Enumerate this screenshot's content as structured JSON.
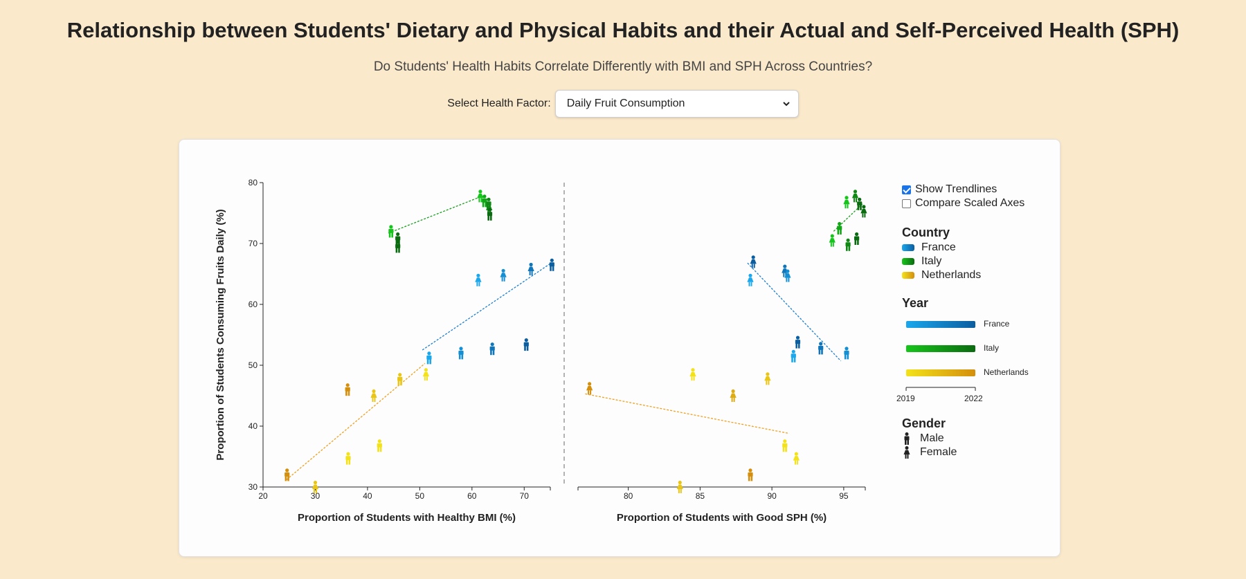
{
  "header": {
    "title": "Relationship between Students' Dietary and Physical Habits and their Actual and Self-Perceived Health (SPH)",
    "subtitle": "Do Students' Health Habits Correlate Differently with BMI and SPH Across Countries?"
  },
  "controls": {
    "select_label": "Select Health Factor:",
    "selected_value": "Daily Fruit Consumption"
  },
  "legend": {
    "show_trendlines": {
      "label": "Show Trendlines",
      "checked": true
    },
    "compare_scaled": {
      "label": "Compare Scaled Axes",
      "checked": false
    },
    "country_title": "Country",
    "countries": [
      {
        "name": "France",
        "color_light": "#1aa7ec",
        "color_dark": "#0b5ea0"
      },
      {
        "name": "Italy",
        "color_light": "#16c51b",
        "color_dark": "#0b6b10"
      },
      {
        "name": "Netherlands",
        "color_light": "#f3e21a",
        "color_dark": "#d48f0c"
      }
    ],
    "year_title": "Year",
    "year_start": "2019",
    "year_end": "2022",
    "gender_title": "Gender",
    "genders": [
      {
        "name": "Male",
        "icon": "male-figure-icon"
      },
      {
        "name": "Female",
        "icon": "female-figure-icon"
      }
    ]
  },
  "chart_data": {
    "type": "scatter",
    "ylabel": "Proportion of Students Consuming Fruits Daily (%)",
    "ylim": [
      30,
      80
    ],
    "yticks": [
      30,
      40,
      50,
      60,
      70,
      80
    ],
    "color_encoding": "country, shade by year (light = 2019, dark = 2022)",
    "panels": [
      {
        "xlabel": "Proportion of Students with Healthy BMI (%)",
        "xlim": [
          20,
          75
        ],
        "xticks": [
          20,
          30,
          40,
          50,
          60,
          70
        ],
        "trendlines": [
          {
            "country": "Italy",
            "x": [
              44,
              62
            ],
            "y": [
              71.7,
              77.8
            ]
          },
          {
            "country": "France",
            "x": [
              50.5,
              75
            ],
            "y": [
              52.5,
              66.7
            ]
          },
          {
            "country": "Netherlands",
            "x": [
              24.5,
              51
            ],
            "y": [
              31.2,
              50.3
            ]
          }
        ],
        "points": [
          {
            "country": "Italy",
            "year": 2019,
            "gender": "Male",
            "x": 44.5,
            "y": 72
          },
          {
            "country": "Italy",
            "year": 2022,
            "gender": "Male",
            "x": 45.8,
            "y": 70.8
          },
          {
            "country": "Italy",
            "year": 2022,
            "gender": "Male",
            "x": 45.8,
            "y": 69.5
          },
          {
            "country": "Italy",
            "year": 2019,
            "gender": "Female",
            "x": 61.6,
            "y": 77.8
          },
          {
            "country": "Italy",
            "year": 2020,
            "gender": "Male",
            "x": 62.4,
            "y": 77
          },
          {
            "country": "Italy",
            "year": 2021,
            "gender": "Male",
            "x": 63.2,
            "y": 76.5
          },
          {
            "country": "Italy",
            "year": 2021,
            "gender": "Female",
            "x": 63.3,
            "y": 75.8
          },
          {
            "country": "Italy",
            "year": 2022,
            "gender": "Male",
            "x": 63.4,
            "y": 74.8
          },
          {
            "country": "France",
            "year": 2019,
            "gender": "Female",
            "x": 61.2,
            "y": 64
          },
          {
            "country": "France",
            "year": 2020,
            "gender": "Female",
            "x": 66,
            "y": 64.8
          },
          {
            "country": "France",
            "year": 2021,
            "gender": "Female",
            "x": 71.3,
            "y": 65.8
          },
          {
            "country": "France",
            "year": 2022,
            "gender": "Male",
            "x": 75.3,
            "y": 66.5
          },
          {
            "country": "France",
            "year": 2019,
            "gender": "Male",
            "x": 51.8,
            "y": 51.2
          },
          {
            "country": "France",
            "year": 2020,
            "gender": "Male",
            "x": 57.9,
            "y": 52
          },
          {
            "country": "France",
            "year": 2021,
            "gender": "Male",
            "x": 63.9,
            "y": 52.7
          },
          {
            "country": "France",
            "year": 2022,
            "gender": "Male",
            "x": 70.4,
            "y": 53.4
          },
          {
            "country": "Netherlands",
            "year": 2022,
            "gender": "Male",
            "x": 24.6,
            "y": 32
          },
          {
            "country": "Netherlands",
            "year": 2020,
            "gender": "Female",
            "x": 30,
            "y": 30
          },
          {
            "country": "Netherlands",
            "year": 2019,
            "gender": "Male",
            "x": 36.3,
            "y": 34.7
          },
          {
            "country": "Netherlands",
            "year": 2019,
            "gender": "Male",
            "x": 42.3,
            "y": 36.8
          },
          {
            "country": "Netherlands",
            "year": 2022,
            "gender": "Male",
            "x": 36.2,
            "y": 46
          },
          {
            "country": "Netherlands",
            "year": 2020,
            "gender": "Female",
            "x": 41.2,
            "y": 45
          },
          {
            "country": "Netherlands",
            "year": 2020,
            "gender": "Male",
            "x": 46.2,
            "y": 47.7
          },
          {
            "country": "Netherlands",
            "year": 2019,
            "gender": "Female",
            "x": 51.2,
            "y": 48.5
          }
        ]
      },
      {
        "xlabel": "Proportion of Students with Good SPH (%)",
        "xlim": [
          76.5,
          96.5
        ],
        "xticks": [
          80,
          85,
          90,
          95
        ],
        "trendlines": [
          {
            "country": "Italy",
            "x": [
              94.3,
              96.3
            ],
            "y": [
              72,
              76.5
            ]
          },
          {
            "country": "France",
            "x": [
              88.3,
              94.8
            ],
            "y": [
              66.8,
              50.7
            ]
          },
          {
            "country": "Netherlands",
            "x": [
              77,
              91.2
            ],
            "y": [
              45.3,
              38.8
            ]
          }
        ],
        "points": [
          {
            "country": "Italy",
            "year": 2019,
            "gender": "Female",
            "x": 94.2,
            "y": 70.5
          },
          {
            "country": "Italy",
            "year": 2020,
            "gender": "Male",
            "x": 94.7,
            "y": 72.5
          },
          {
            "country": "Italy",
            "year": 2021,
            "gender": "Male",
            "x": 95.3,
            "y": 69.8
          },
          {
            "country": "Italy",
            "year": 2022,
            "gender": "Male",
            "x": 95.9,
            "y": 70.8
          },
          {
            "country": "Italy",
            "year": 2019,
            "gender": "Female",
            "x": 95.2,
            "y": 76.8
          },
          {
            "country": "Italy",
            "year": 2021,
            "gender": "Female",
            "x": 95.8,
            "y": 77.8
          },
          {
            "country": "Italy",
            "year": 2022,
            "gender": "Male",
            "x": 96.1,
            "y": 76.5
          },
          {
            "country": "Italy",
            "year": 2022,
            "gender": "Female",
            "x": 96.4,
            "y": 75.3
          },
          {
            "country": "France",
            "year": 2022,
            "gender": "Female",
            "x": 88.7,
            "y": 67
          },
          {
            "country": "France",
            "year": 2019,
            "gender": "Female",
            "x": 88.5,
            "y": 64
          },
          {
            "country": "France",
            "year": 2021,
            "gender": "Female",
            "x": 90.9,
            "y": 65.5
          },
          {
            "country": "France",
            "year": 2020,
            "gender": "Female",
            "x": 91.1,
            "y": 64.7
          },
          {
            "country": "France",
            "year": 2019,
            "gender": "Male",
            "x": 91.5,
            "y": 51.5
          },
          {
            "country": "France",
            "year": 2022,
            "gender": "Male",
            "x": 91.8,
            "y": 53.8
          },
          {
            "country": "France",
            "year": 2021,
            "gender": "Male",
            "x": 93.4,
            "y": 52.8
          },
          {
            "country": "France",
            "year": 2020,
            "gender": "Male",
            "x": 95.2,
            "y": 52
          },
          {
            "country": "Netherlands",
            "year": 2022,
            "gender": "Female",
            "x": 77.3,
            "y": 46.2
          },
          {
            "country": "Netherlands",
            "year": 2019,
            "gender": "Female",
            "x": 84.5,
            "y": 48.5
          },
          {
            "country": "Netherlands",
            "year": 2021,
            "gender": "Female",
            "x": 87.3,
            "y": 45
          },
          {
            "country": "Netherlands",
            "year": 2020,
            "gender": "Female",
            "x": 89.7,
            "y": 47.8
          },
          {
            "country": "Netherlands",
            "year": 2020,
            "gender": "Female",
            "x": 83.6,
            "y": 30
          },
          {
            "country": "Netherlands",
            "year": 2022,
            "gender": "Male",
            "x": 88.5,
            "y": 32
          },
          {
            "country": "Netherlands",
            "year": 2019,
            "gender": "Male",
            "x": 90.9,
            "y": 36.8
          },
          {
            "country": "Netherlands",
            "year": 2019,
            "gender": "Female",
            "x": 91.7,
            "y": 34.7
          }
        ]
      }
    ]
  }
}
